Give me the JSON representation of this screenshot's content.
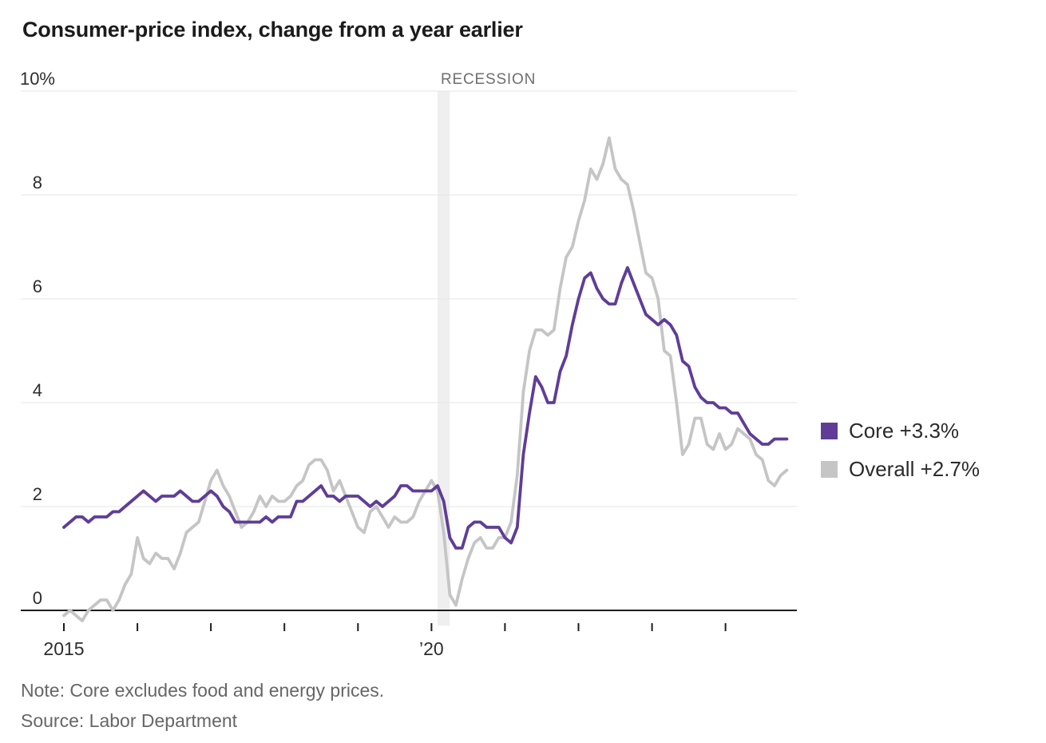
{
  "note": "Note: Core excludes food and energy prices.",
  "source": "Source: Labor Department",
  "colors": {
    "core_purple": "#5f3d97",
    "overall_gray": "#c5c5c5",
    "recession_band": "#efefef",
    "gridline": "#e4e4e4",
    "zero_axis": "#1d1d1d",
    "text_dark": "#2d2d2d",
    "recession_text": "#6f6f6f",
    "note_gray": "#666666"
  },
  "chart_data": {
    "type": "line",
    "title": "Consumer-price index, change from a year earlier",
    "xlabel": "",
    "ylabel": "",
    "x_start": "2015-01",
    "x_end": "2024-11",
    "x_unit": "month",
    "ylim": [
      -0.5,
      10
    ],
    "grid": true,
    "legend_position": "right",
    "yticks": [
      {
        "label": "10%",
        "value": 10
      },
      {
        "label": "8",
        "value": 8
      },
      {
        "label": "6",
        "value": 6
      },
      {
        "label": "4",
        "value": 4
      },
      {
        "label": "2",
        "value": 2
      },
      {
        "label": "0",
        "value": 0
      }
    ],
    "xticks": [
      {
        "year": 2015,
        "label": "2015"
      },
      {
        "year": 2016,
        "label": ""
      },
      {
        "year": 2017,
        "label": ""
      },
      {
        "year": 2018,
        "label": ""
      },
      {
        "year": 2019,
        "label": ""
      },
      {
        "year": 2020,
        "label": "’20"
      },
      {
        "year": 2021,
        "label": ""
      },
      {
        "year": 2022,
        "label": ""
      },
      {
        "year": 2023,
        "label": ""
      },
      {
        "year": 2024,
        "label": ""
      }
    ],
    "recession": {
      "label": "RECESSION",
      "start": "2020-02",
      "end": "2020-04"
    },
    "series": [
      {
        "name": "Core",
        "legend": "Core +3.3%",
        "color": "#5f3d97",
        "values": [
          1.6,
          1.7,
          1.8,
          1.8,
          1.7,
          1.8,
          1.8,
          1.8,
          1.9,
          1.9,
          2.0,
          2.1,
          2.2,
          2.3,
          2.2,
          2.1,
          2.2,
          2.2,
          2.2,
          2.3,
          2.2,
          2.1,
          2.1,
          2.2,
          2.3,
          2.2,
          2.0,
          1.9,
          1.7,
          1.7,
          1.7,
          1.7,
          1.7,
          1.8,
          1.7,
          1.8,
          1.8,
          1.8,
          2.1,
          2.1,
          2.2,
          2.3,
          2.4,
          2.2,
          2.2,
          2.1,
          2.2,
          2.2,
          2.2,
          2.1,
          2.0,
          2.1,
          2.0,
          2.1,
          2.2,
          2.4,
          2.4,
          2.3,
          2.3,
          2.3,
          2.3,
          2.4,
          2.1,
          1.4,
          1.2,
          1.2,
          1.6,
          1.7,
          1.7,
          1.6,
          1.6,
          1.6,
          1.4,
          1.3,
          1.6,
          3.0,
          3.8,
          4.5,
          4.3,
          4.0,
          4.0,
          4.6,
          4.9,
          5.5,
          6.0,
          6.4,
          6.5,
          6.2,
          6.0,
          5.9,
          5.9,
          6.3,
          6.6,
          6.3,
          6.0,
          5.7,
          5.6,
          5.5,
          5.6,
          5.5,
          5.3,
          4.8,
          4.7,
          4.3,
          4.1,
          4.0,
          4.0,
          3.9,
          3.9,
          3.8,
          3.8,
          3.6,
          3.4,
          3.3,
          3.2,
          3.2,
          3.3,
          3.3,
          3.3
        ]
      },
      {
        "name": "Overall",
        "legend": "Overall +2.7%",
        "color": "#c5c5c5",
        "values": [
          -0.1,
          0.0,
          -0.1,
          -0.2,
          0.0,
          0.1,
          0.2,
          0.2,
          0.0,
          0.2,
          0.5,
          0.7,
          1.4,
          1.0,
          0.9,
          1.1,
          1.0,
          1.0,
          0.8,
          1.1,
          1.5,
          1.6,
          1.7,
          2.1,
          2.5,
          2.7,
          2.4,
          2.2,
          1.9,
          1.6,
          1.7,
          1.9,
          2.2,
          2.0,
          2.2,
          2.1,
          2.1,
          2.2,
          2.4,
          2.5,
          2.8,
          2.9,
          2.9,
          2.7,
          2.3,
          2.5,
          2.2,
          1.9,
          1.6,
          1.5,
          1.9,
          2.0,
          1.8,
          1.6,
          1.8,
          1.7,
          1.7,
          1.8,
          2.1,
          2.3,
          2.5,
          2.3,
          1.5,
          0.3,
          0.1,
          0.6,
          1.0,
          1.3,
          1.4,
          1.2,
          1.2,
          1.4,
          1.4,
          1.7,
          2.6,
          4.2,
          5.0,
          5.4,
          5.4,
          5.3,
          5.4,
          6.2,
          6.8,
          7.0,
          7.5,
          7.9,
          8.5,
          8.3,
          8.6,
          9.1,
          8.5,
          8.3,
          8.2,
          7.7,
          7.1,
          6.5,
          6.4,
          6.0,
          5.0,
          4.9,
          4.0,
          3.0,
          3.2,
          3.7,
          3.7,
          3.2,
          3.1,
          3.4,
          3.1,
          3.2,
          3.5,
          3.4,
          3.3,
          3.0,
          2.9,
          2.5,
          2.4,
          2.6,
          2.7
        ]
      }
    ]
  }
}
